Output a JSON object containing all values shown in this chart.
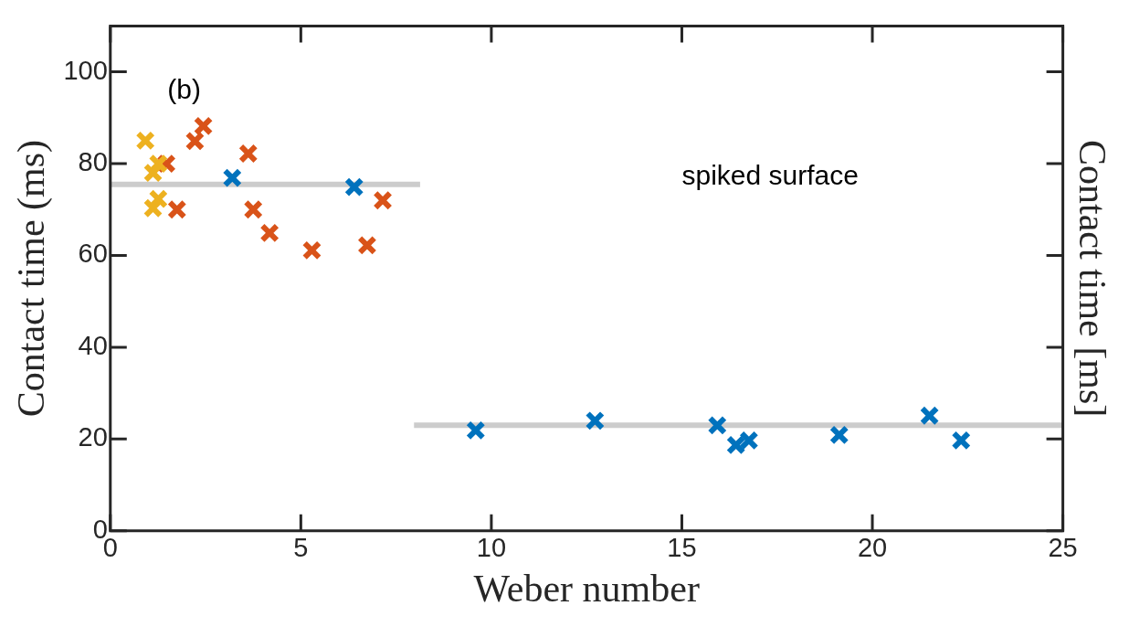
{
  "chart_data": {
    "type": "scatter",
    "xlabel": "Weber number",
    "ylabel": "Contact time (ms)",
    "y2label": "Contact time [ms]",
    "annotations": [
      "(b)",
      "spiked surface"
    ],
    "xlim": [
      0,
      25
    ],
    "xticks": [
      0,
      5,
      10,
      15,
      20,
      25
    ],
    "ylim": [
      0,
      110
    ],
    "yticks": [
      0,
      20,
      40,
      60,
      80,
      100
    ],
    "grid": false,
    "legend": false,
    "marker": "cross",
    "series": [
      {
        "type": "line",
        "color": "#cccccc",
        "x": [
          0,
          8.13
        ],
        "values": [
          75.5,
          75.5
        ],
        "marker": "none"
      },
      {
        "type": "line",
        "color": "#cccccc",
        "x": [
          7.97,
          25
        ],
        "values": [
          23,
          23
        ],
        "marker": "none"
      },
      {
        "color": "#edb120",
        "x": [
          0.92,
          1.26,
          1.12,
          1.26,
          1.12
        ],
        "values": [
          85,
          80,
          78,
          72.3,
          70.3
        ]
      },
      {
        "color": "#d95319",
        "x": [
          2.44,
          2.22,
          1.47,
          1.75,
          3.62,
          3.75,
          4.18,
          5.29,
          6.74,
          7.15
        ],
        "values": [
          88.2,
          84.9,
          80,
          70,
          82.2,
          70,
          64.9,
          61.1,
          62.2,
          72
        ]
      },
      {
        "color": "#0072bd",
        "x": [
          3.2,
          6.4,
          9.59,
          12.72,
          15.93,
          16.42,
          16.76,
          19.13,
          21.5,
          22.33
        ],
        "values": [
          76.9,
          74.9,
          21.9,
          24,
          23,
          18.7,
          19.7,
          20.9,
          25.1,
          19.7
        ]
      }
    ]
  }
}
